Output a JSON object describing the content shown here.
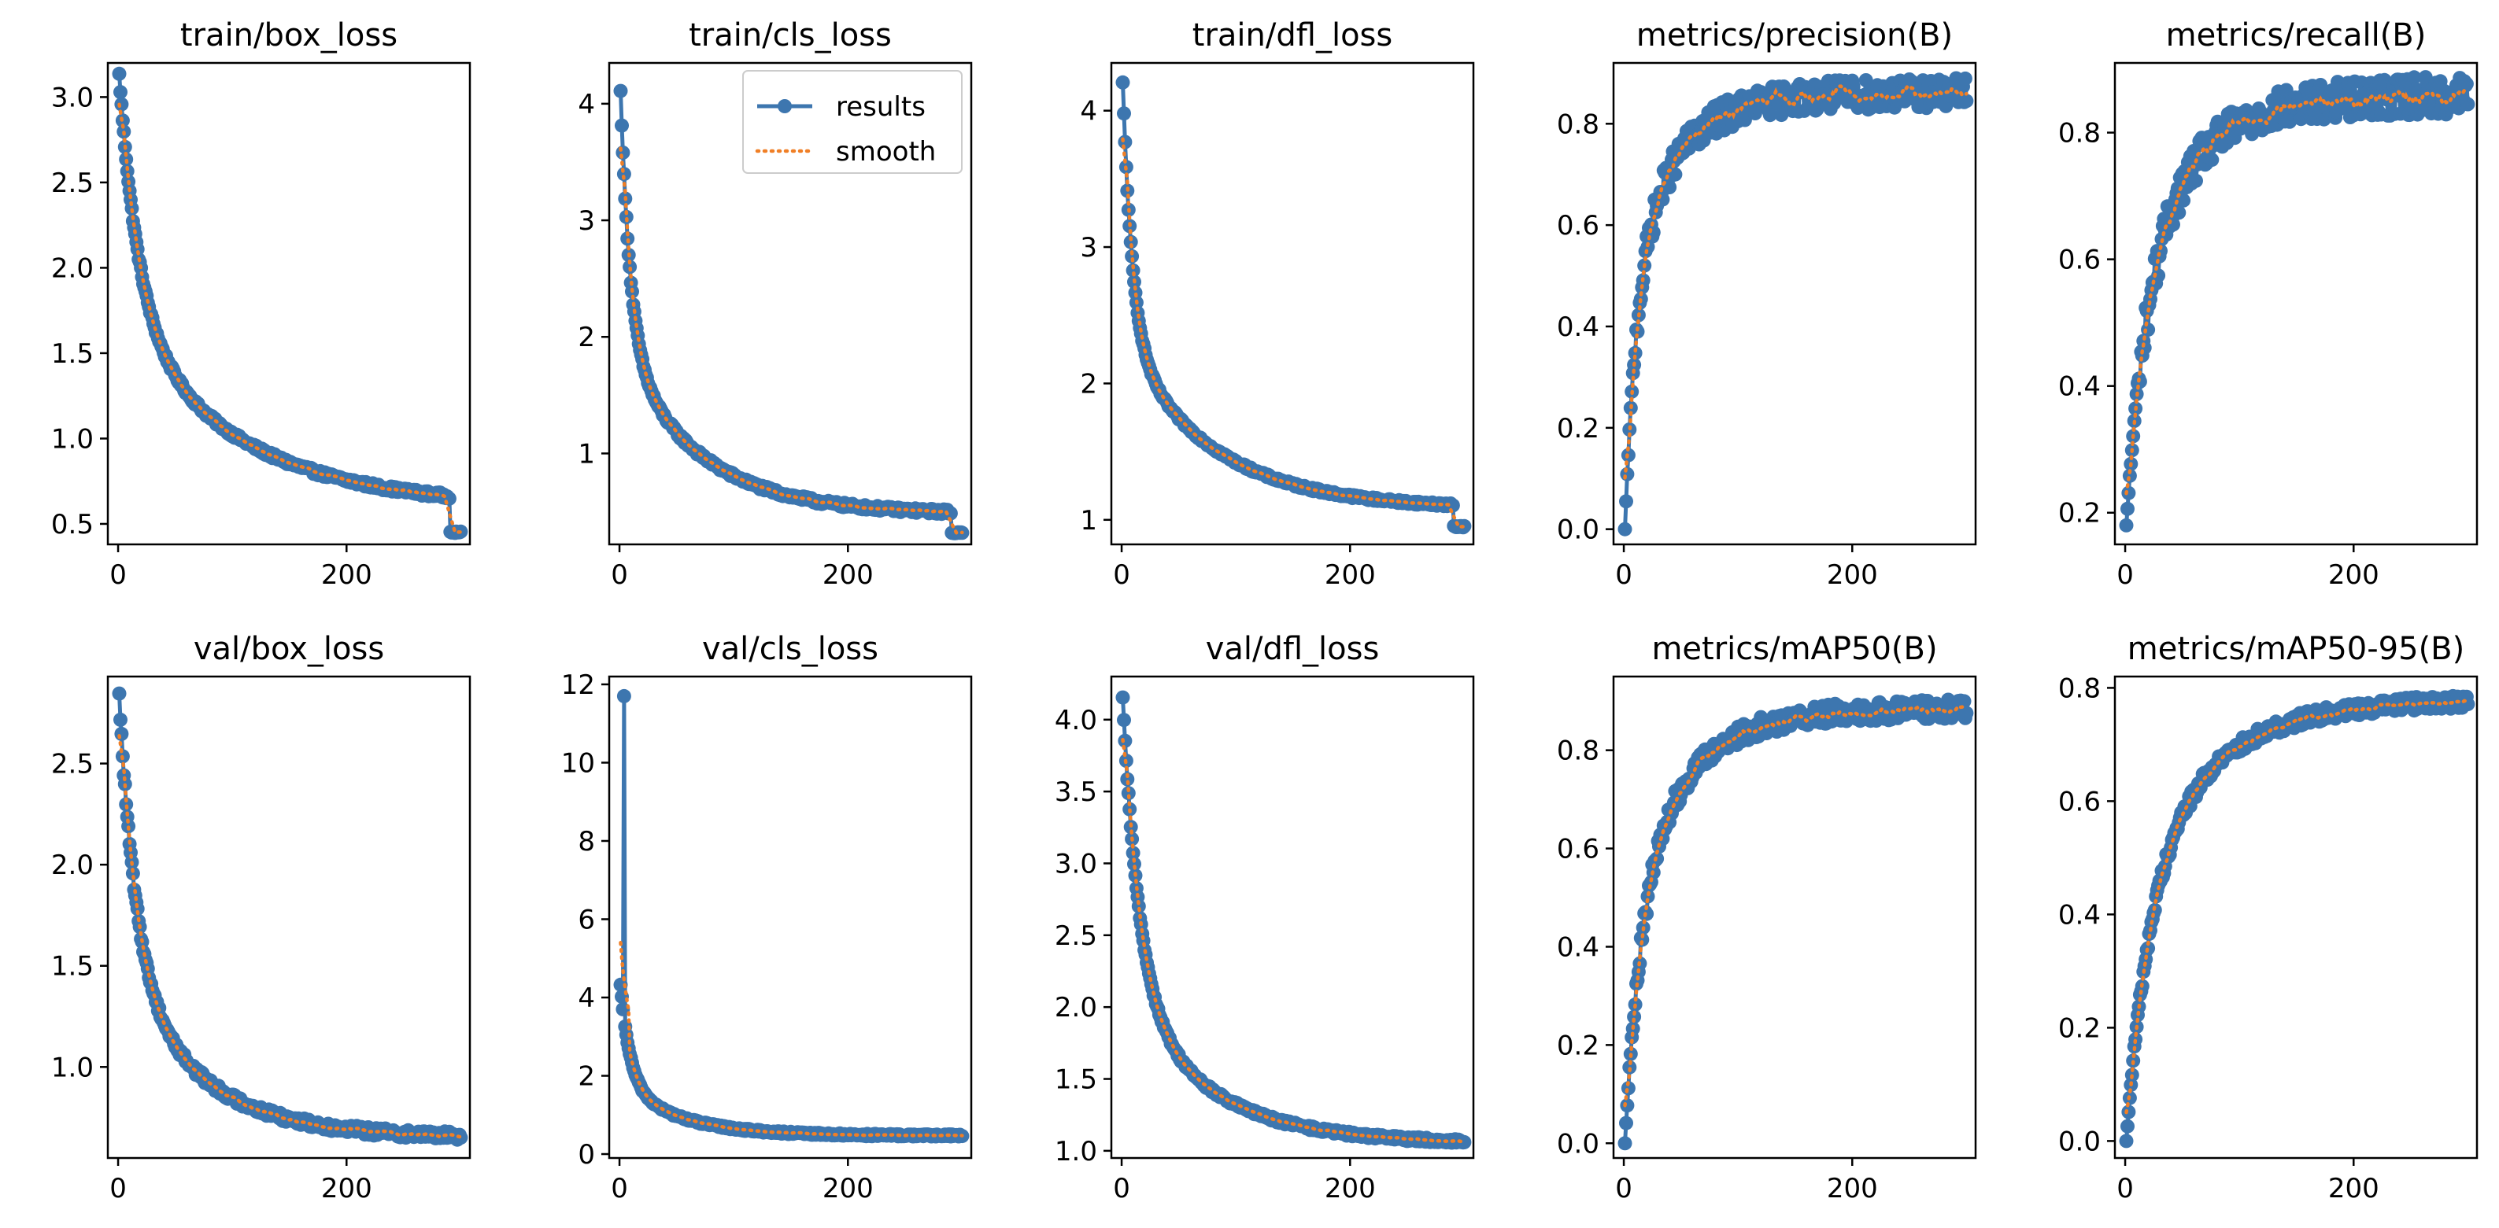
{
  "colors": {
    "results": "#3d76af",
    "smooth": "#f07f26",
    "frame": "#000000"
  },
  "legend": {
    "position": "upper right of panel 2",
    "series": [
      "results",
      "smooth"
    ]
  },
  "chart_data": [
    {
      "type": "line",
      "title": "train/box_loss",
      "xlim": [
        -9,
        308
      ],
      "ylim": [
        0.38,
        3.2
      ],
      "xticks": [
        0,
        200
      ],
      "yticks": [
        0.5,
        1.0,
        1.5,
        2.0,
        2.5,
        3.0
      ],
      "ytick_labels": [
        "0.5",
        "1.0",
        "1.5",
        "2.0",
        "2.5",
        "3.0"
      ],
      "curve": {
        "start": 3.13,
        "end": 0.6,
        "shape": "decay",
        "k": 0.06,
        "k2": 0.01,
        "w": 0.55,
        "noise": 0.015
      },
      "tail": {
        "from": 290,
        "to": 0.45
      }
    },
    {
      "type": "line",
      "title": "train/cls_loss",
      "xlim": [
        -9,
        308
      ],
      "ylim": [
        0.22,
        4.35
      ],
      "xticks": [
        0,
        200
      ],
      "yticks": [
        1,
        2,
        3,
        4
      ],
      "ytick_labels": [
        "1",
        "2",
        "3",
        "4"
      ],
      "curve": {
        "start": 4.1,
        "end": 0.48,
        "shape": "decay",
        "k": 0.12,
        "k2": 0.015,
        "w": 0.6,
        "noise": 0.02
      },
      "tail": {
        "from": 290,
        "to": 0.32
      }
    },
    {
      "type": "line",
      "title": "train/dfl_loss",
      "xlim": [
        -9,
        308
      ],
      "ylim": [
        0.82,
        4.35
      ],
      "xticks": [
        0,
        200
      ],
      "yticks": [
        1,
        2,
        3,
        4
      ],
      "ytick_labels": [
        "1",
        "2",
        "3",
        "4"
      ],
      "curve": {
        "start": 4.2,
        "end": 1.08,
        "shape": "decay",
        "k": 0.12,
        "k2": 0.013,
        "w": 0.6,
        "noise": 0.012
      },
      "tail": {
        "from": 290,
        "to": 0.95
      }
    },
    {
      "type": "line",
      "title": "metrics/precision(B)",
      "xlim": [
        -9,
        308
      ],
      "ylim": [
        -0.03,
        0.92
      ],
      "xticks": [
        0,
        200
      ],
      "yticks": [
        0.0,
        0.2,
        0.4,
        0.6,
        0.8
      ],
      "ytick_labels": [
        "0.0",
        "0.2",
        "0.4",
        "0.6",
        "0.8"
      ],
      "curve": {
        "start": 0.0,
        "end": 0.86,
        "shape": "rise",
        "k": 0.1,
        "k2": 0.025,
        "w": 0.55,
        "noise": 0.03
      }
    },
    {
      "type": "line",
      "title": "metrics/recall(B)",
      "xlim": [
        -9,
        308
      ],
      "ylim": [
        0.15,
        0.91
      ],
      "xticks": [
        0,
        200
      ],
      "yticks": [
        0.2,
        0.4,
        0.6,
        0.8
      ],
      "ytick_labels": [
        "0.2",
        "0.4",
        "0.6",
        "0.8"
      ],
      "curve": {
        "start": 0.18,
        "end": 0.86,
        "shape": "rise",
        "k": 0.06,
        "k2": 0.02,
        "w": 0.5,
        "noise": 0.03
      }
    },
    {
      "type": "line",
      "title": "val/box_loss",
      "xlim": [
        -9,
        308
      ],
      "ylim": [
        0.55,
        2.93
      ],
      "xticks": [
        0,
        200
      ],
      "yticks": [
        1.0,
        1.5,
        2.0,
        2.5
      ],
      "ytick_labels": [
        "1.0",
        "1.5",
        "2.0",
        "2.5"
      ],
      "curve": {
        "start": 2.83,
        "end": 0.65,
        "shape": "decay",
        "k": 0.07,
        "k2": 0.015,
        "w": 0.6,
        "noise": 0.02
      }
    },
    {
      "type": "line",
      "title": "val/cls_loss",
      "xlim": [
        -9,
        308
      ],
      "ylim": [
        -0.1,
        12.2
      ],
      "xticks": [
        0,
        200
      ],
      "yticks": [
        0,
        2,
        4,
        6,
        8,
        10,
        12
      ],
      "ytick_labels": [
        "0",
        "2",
        "4",
        "6",
        "8",
        "10",
        "12"
      ],
      "curve": {
        "start": 4.3,
        "end": 0.47,
        "shape": "decay",
        "k": 0.12,
        "k2": 0.02,
        "w": 0.65,
        "noise": 0.03
      },
      "spike": {
        "at": 3,
        "value": 11.7
      }
    },
    {
      "type": "line",
      "title": "val/dfl_loss",
      "xlim": [
        -9,
        308
      ],
      "ylim": [
        0.95,
        4.3
      ],
      "xticks": [
        0,
        200
      ],
      "yticks": [
        1.0,
        1.5,
        2.0,
        2.5,
        3.0,
        3.5,
        4.0
      ],
      "ytick_labels": [
        "1.0",
        "1.5",
        "2.0",
        "2.5",
        "3.0",
        "3.5",
        "4.0"
      ],
      "curve": {
        "start": 4.14,
        "end": 1.05,
        "shape": "decay",
        "k": 0.07,
        "k2": 0.014,
        "w": 0.65,
        "noise": 0.015
      }
    },
    {
      "type": "line",
      "title": "metrics/mAP50(B)",
      "xlim": [
        -9,
        308
      ],
      "ylim": [
        -0.03,
        0.95
      ],
      "xticks": [
        0,
        200
      ],
      "yticks": [
        0.0,
        0.2,
        0.4,
        0.6,
        0.8
      ],
      "ytick_labels": [
        "0.0",
        "0.2",
        "0.4",
        "0.6",
        "0.8"
      ],
      "curve": {
        "start": 0.0,
        "end": 0.885,
        "shape": "rise",
        "k": 0.07,
        "k2": 0.02,
        "w": 0.55,
        "noise": 0.02
      }
    },
    {
      "type": "line",
      "title": "metrics/mAP50-95(B)",
      "xlim": [
        -9,
        308
      ],
      "ylim": [
        -0.03,
        0.82
      ],
      "xticks": [
        0,
        200
      ],
      "yticks": [
        0.0,
        0.2,
        0.4,
        0.6,
        0.8
      ],
      "ytick_labels": [
        "0.0",
        "0.2",
        "0.4",
        "0.6",
        "0.8"
      ],
      "curve": {
        "start": 0.0,
        "end": 0.78,
        "shape": "rise",
        "k": 0.05,
        "k2": 0.015,
        "w": 0.55,
        "noise": 0.012
      }
    }
  ]
}
